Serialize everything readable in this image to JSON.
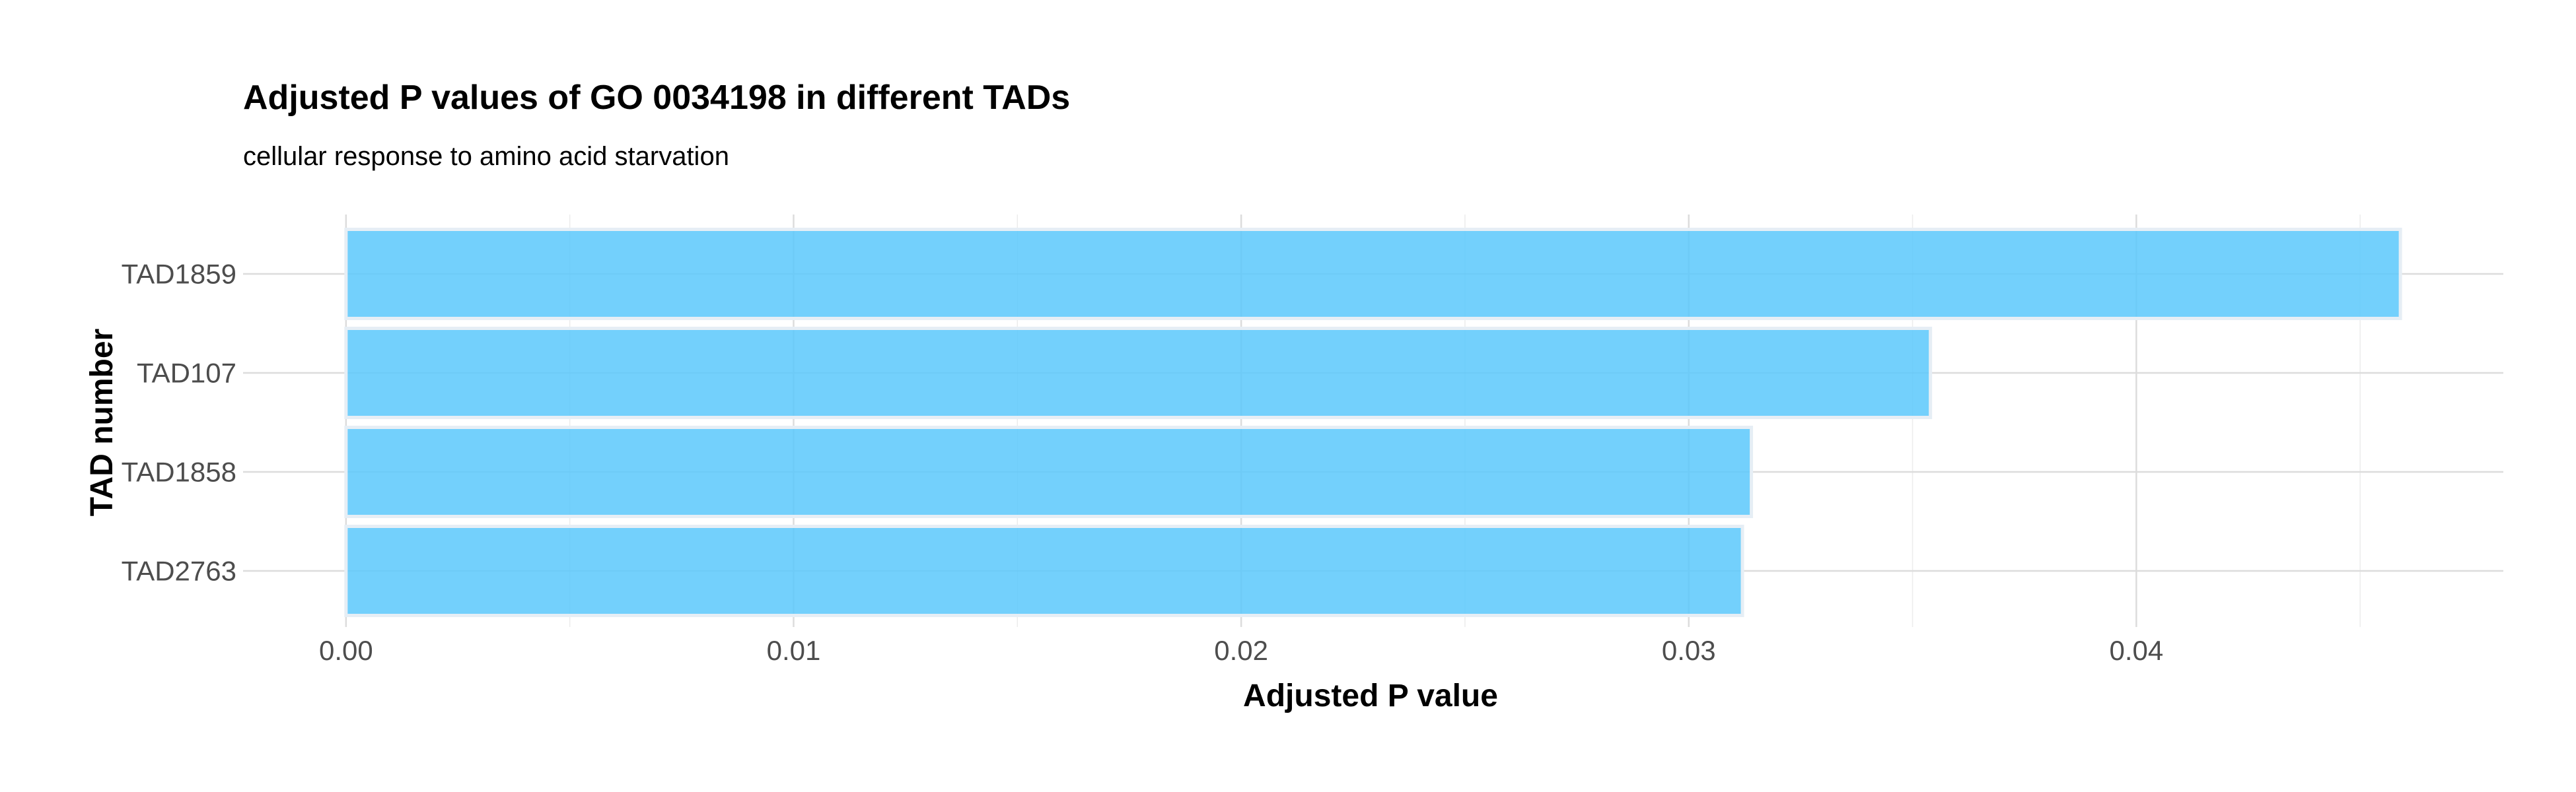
{
  "chart_data": {
    "type": "bar",
    "orientation": "horizontal",
    "title": "Adjusted P values of GO 0034198 in different TADs",
    "subtitle": "cellular response to amino acid starvation",
    "xlabel": "Adjusted P value",
    "ylabel": "TAD number",
    "categories": [
      "TAD1859",
      "TAD107",
      "TAD1858",
      "TAD2763"
    ],
    "values": [
      0.0459,
      0.0354,
      0.0314,
      0.0312
    ],
    "xlim": [
      -0.0023,
      0.0482
    ],
    "xticks": [
      0.0,
      0.01,
      0.02,
      0.03,
      0.04
    ],
    "xtick_labels": [
      "0.00",
      "0.01",
      "0.02",
      "0.03",
      "0.04"
    ],
    "x_minor_ticks": [
      0.005,
      0.015,
      0.025,
      0.035,
      0.045
    ],
    "bar_color": "#5bc8fb",
    "bar_opacity": 0.85,
    "bar_outline_color": "#e6eef5",
    "grid": true,
    "legend": "none"
  }
}
